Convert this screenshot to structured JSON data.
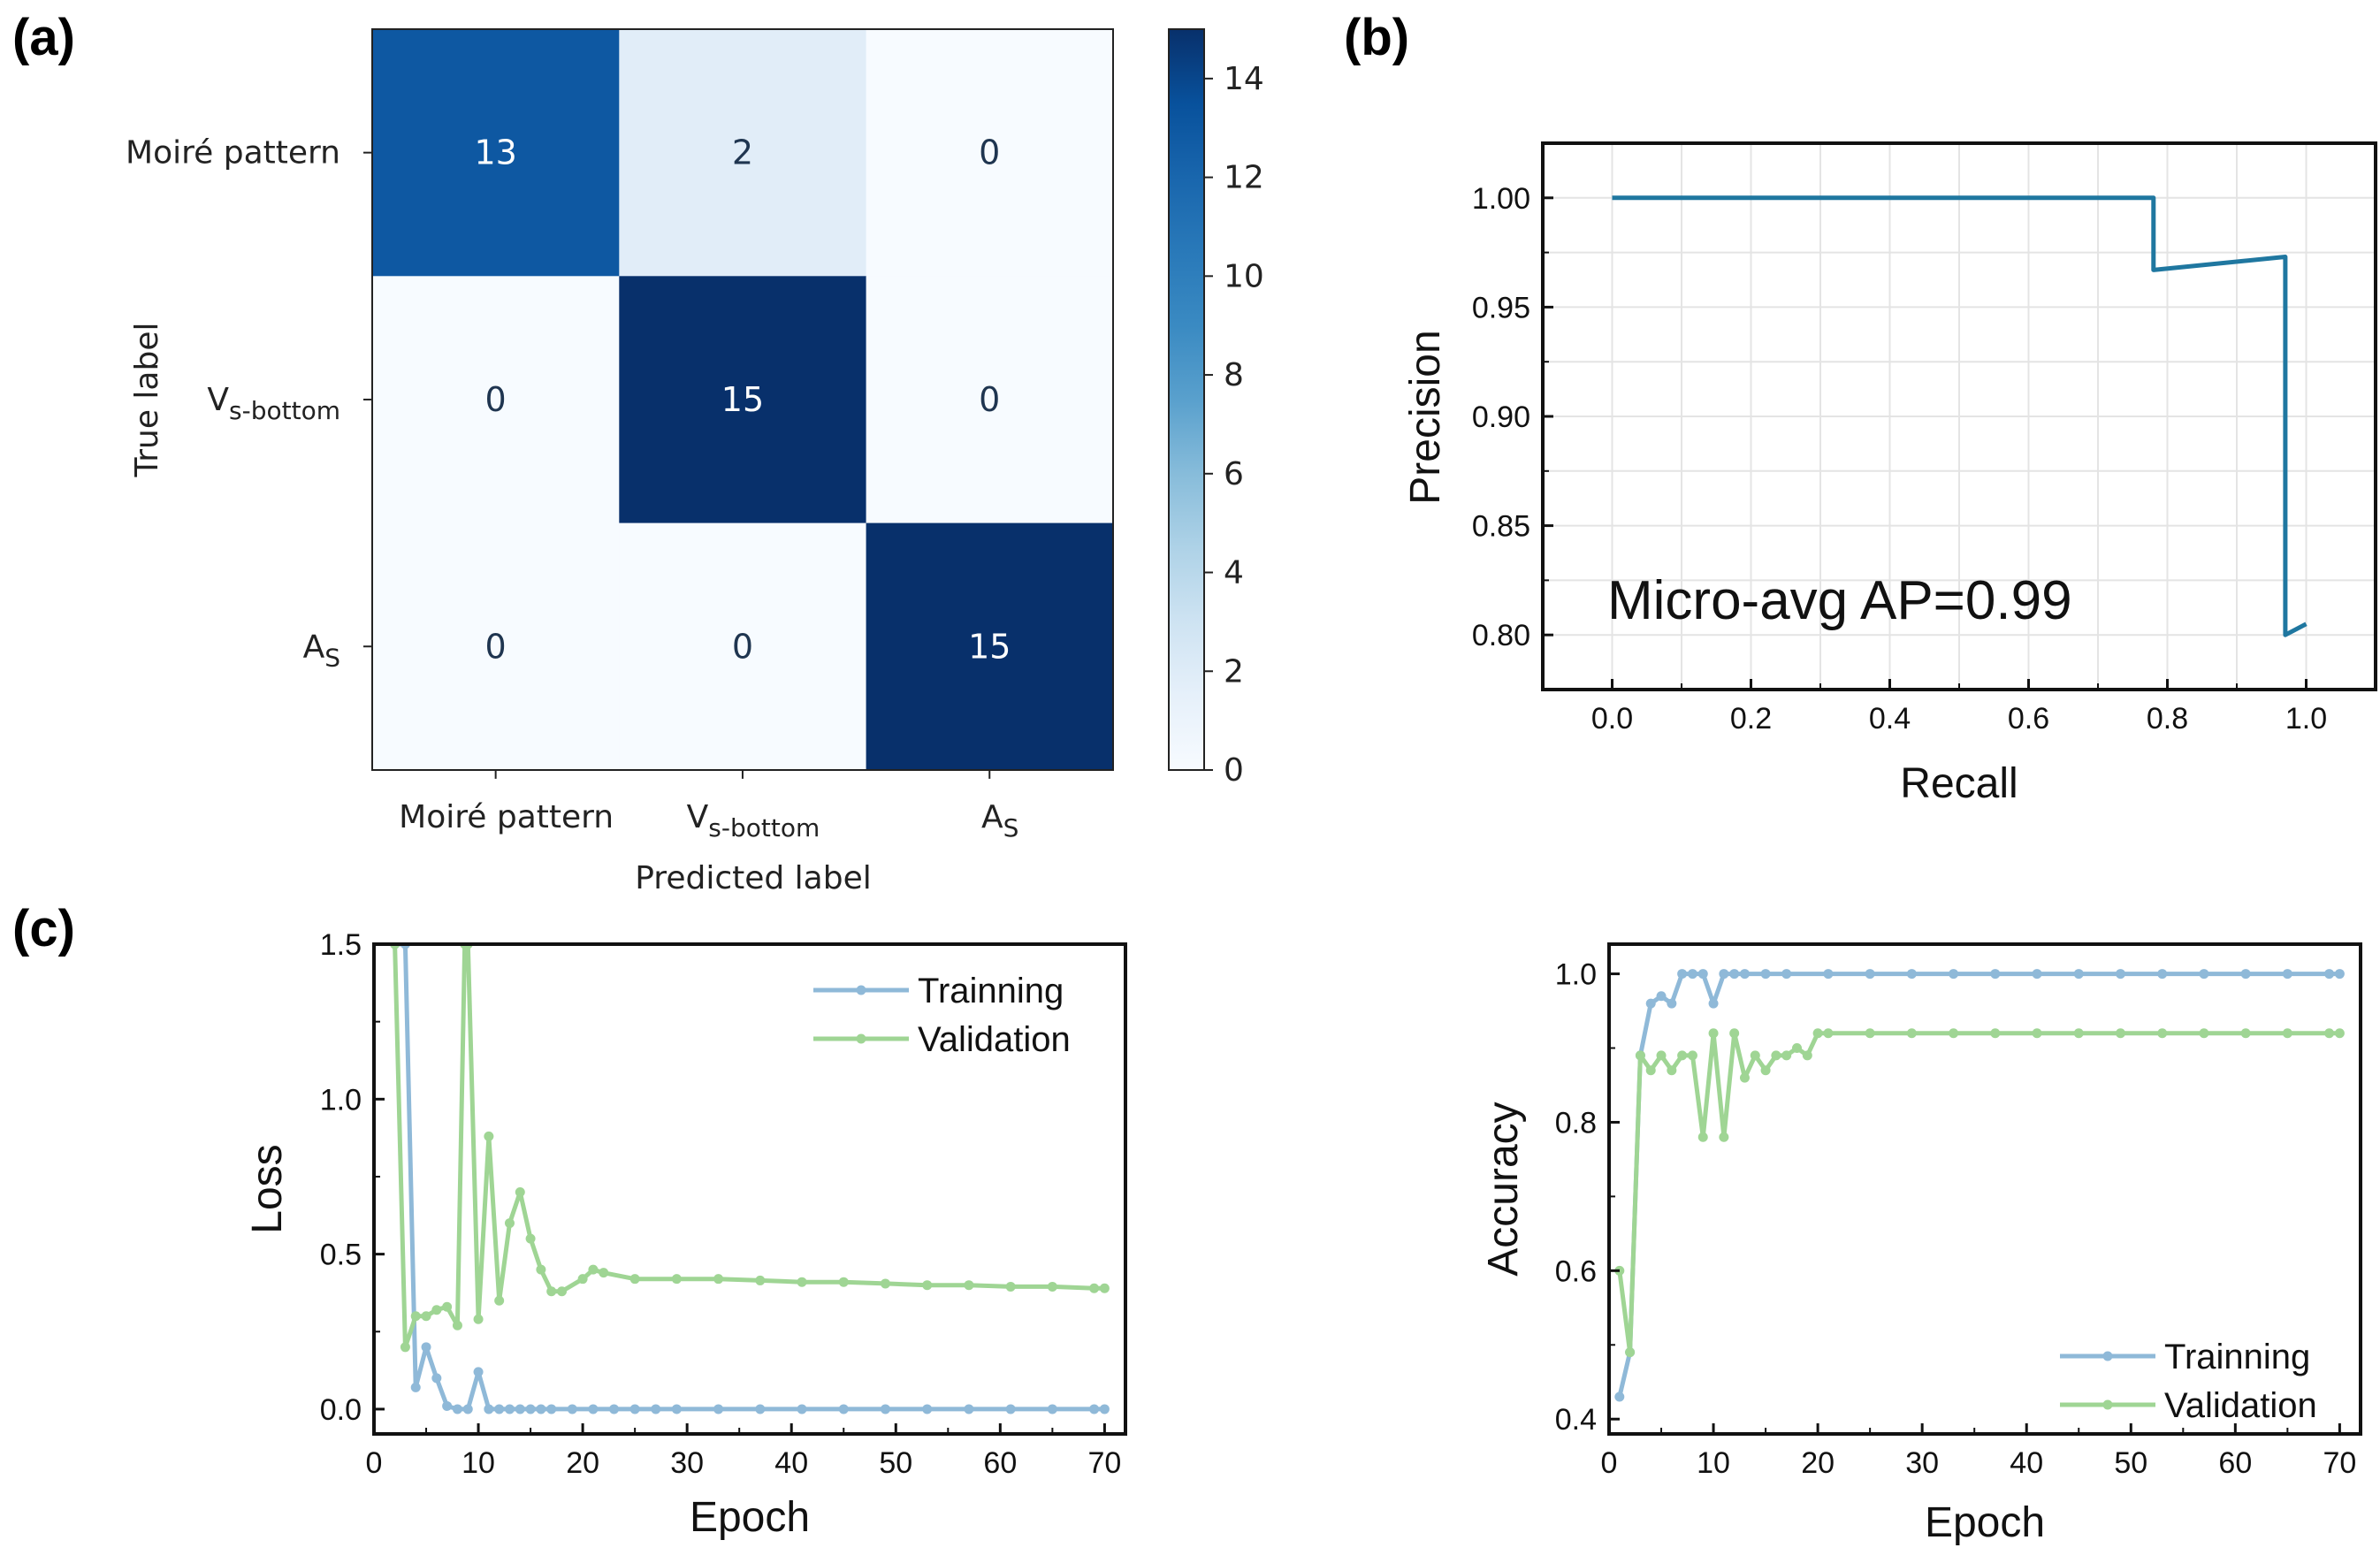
{
  "panels": {
    "a": "(a)",
    "b": "(b)",
    "c": "(c)"
  },
  "colors": {
    "cm_dark": "#08306b",
    "cm_mid": "#2171b5",
    "cm_light": "#f7fbff",
    "pr_line": "#1f77a0",
    "training": "#8fb9d8",
    "validation": "#9fd594"
  },
  "chart_data": [
    {
      "type": "heatmap",
      "id": "confusion-matrix",
      "row_labels": [
        {
          "main": "Moiré pattern",
          "sub": ""
        },
        {
          "main": "V",
          "sub": "s-bottom"
        },
        {
          "main": "A",
          "sub": "S"
        }
      ],
      "col_labels": [
        {
          "main": "Moiré pattern",
          "sub": ""
        },
        {
          "main": "V",
          "sub": "s-bottom"
        },
        {
          "main": "A",
          "sub": "S"
        }
      ],
      "values": [
        [
          13,
          2,
          0
        ],
        [
          0,
          15,
          0
        ],
        [
          0,
          0,
          15
        ]
      ],
      "xlabel": "Predicted label",
      "ylabel": "True label",
      "colorbar": {
        "min": 0,
        "max": 15,
        "ticks": [
          0,
          2,
          4,
          6,
          8,
          10,
          12,
          14
        ]
      }
    },
    {
      "type": "line",
      "id": "precision-recall",
      "xlabel": "Recall",
      "ylabel": "Precision",
      "xlim": [
        -0.1,
        1.1
      ],
      "ylim": [
        0.775,
        1.025
      ],
      "xticks": [
        "0.0",
        "0.2",
        "0.4",
        "0.6",
        "0.8",
        "1.0"
      ],
      "yticks": [
        "0.80",
        "0.85",
        "0.90",
        "0.95",
        "1.00"
      ],
      "annotation": "Micro-avg AP=0.99",
      "points": [
        [
          0.0,
          1.0
        ],
        [
          0.78,
          1.0
        ],
        [
          0.78,
          0.967
        ],
        [
          0.97,
          0.973
        ],
        [
          0.97,
          0.8
        ],
        [
          1.0,
          0.805
        ]
      ]
    },
    {
      "type": "line",
      "id": "loss-curve",
      "xlabel": "Epoch",
      "ylabel": "Loss",
      "xlim": [
        0,
        72
      ],
      "ylim": [
        -0.08,
        1.5
      ],
      "xticks": [
        "0",
        "10",
        "20",
        "30",
        "40",
        "50",
        "60",
        "70"
      ],
      "yticks": [
        "0.0",
        "0.5",
        "1.0",
        "1.5"
      ],
      "legend_position": "top-right",
      "series": [
        {
          "name": "Trainning",
          "x": [
            2,
            3,
            4,
            5,
            6,
            7,
            8,
            9,
            10,
            11,
            12,
            13,
            14,
            15,
            16,
            17,
            19,
            21,
            23,
            25,
            27,
            29,
            33,
            37,
            41,
            45,
            49,
            53,
            57,
            61,
            65,
            69,
            70
          ],
          "y": [
            1.5,
            1.5,
            0.07,
            0.2,
            0.1,
            0.01,
            0.0,
            0.0,
            0.12,
            0.0,
            0.0,
            0.0,
            0.0,
            0.0,
            0.0,
            0.0,
            0.0,
            0.0,
            0.0,
            0.0,
            0.0,
            0.0,
            0.0,
            0.0,
            0.0,
            0.0,
            0.0,
            0.0,
            0.0,
            0.0,
            0.0,
            0.0,
            0.0
          ]
        },
        {
          "name": "Validation",
          "x": [
            2,
            3,
            4,
            5,
            6,
            7,
            8,
            8.7,
            9,
            10,
            11,
            12,
            13,
            14,
            15,
            16,
            17,
            18,
            20,
            21,
            22,
            25,
            29,
            33,
            37,
            41,
            45,
            49,
            53,
            57,
            61,
            65,
            69,
            70
          ],
          "y": [
            1.5,
            0.2,
            0.3,
            0.3,
            0.32,
            0.33,
            0.27,
            1.5,
            1.5,
            0.29,
            0.88,
            0.35,
            0.6,
            0.7,
            0.55,
            0.45,
            0.38,
            0.38,
            0.42,
            0.45,
            0.44,
            0.42,
            0.42,
            0.42,
            0.415,
            0.41,
            0.41,
            0.405,
            0.4,
            0.4,
            0.395,
            0.395,
            0.39,
            0.39
          ]
        }
      ]
    },
    {
      "type": "line",
      "id": "accuracy-curve",
      "xlabel": "Epoch",
      "ylabel": "Accuracy",
      "xlim": [
        0,
        72
      ],
      "ylim": [
        0.38,
        1.04
      ],
      "xticks": [
        "0",
        "10",
        "20",
        "30",
        "40",
        "50",
        "60",
        "70"
      ],
      "yticks": [
        "0.4",
        "0.6",
        "0.8",
        "1.0"
      ],
      "legend_position": "bottom-right",
      "series": [
        {
          "name": "Trainning",
          "x": [
            1,
            2,
            3,
            4,
            5,
            6,
            7,
            8,
            9,
            10,
            11,
            12,
            13,
            15,
            17,
            21,
            25,
            29,
            33,
            37,
            41,
            45,
            49,
            53,
            57,
            61,
            65,
            69,
            70
          ],
          "y": [
            0.43,
            0.49,
            0.89,
            0.96,
            0.97,
            0.96,
            1.0,
            1.0,
            1.0,
            0.96,
            1.0,
            1.0,
            1.0,
            1.0,
            1.0,
            1.0,
            1.0,
            1.0,
            1.0,
            1.0,
            1.0,
            1.0,
            1.0,
            1.0,
            1.0,
            1.0,
            1.0,
            1.0,
            1.0
          ]
        },
        {
          "name": "Validation",
          "x": [
            1,
            2,
            3,
            4,
            5,
            6,
            7,
            8,
            9,
            10,
            11,
            12,
            13,
            14,
            15,
            16,
            17,
            18,
            19,
            20,
            21,
            25,
            29,
            33,
            37,
            41,
            45,
            49,
            53,
            57,
            61,
            65,
            69,
            70
          ],
          "y": [
            0.6,
            0.49,
            0.89,
            0.87,
            0.89,
            0.87,
            0.89,
            0.89,
            0.78,
            0.92,
            0.78,
            0.92,
            0.86,
            0.89,
            0.87,
            0.89,
            0.89,
            0.9,
            0.89,
            0.92,
            0.92,
            0.92,
            0.92,
            0.92,
            0.92,
            0.92,
            0.92,
            0.92,
            0.92,
            0.92,
            0.92,
            0.92,
            0.92,
            0.92
          ]
        }
      ]
    }
  ]
}
